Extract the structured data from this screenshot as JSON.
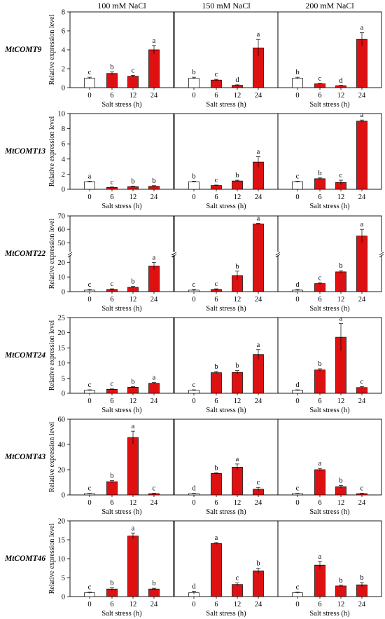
{
  "conditions": [
    "100 mM NaCl",
    "150 mM NaCl",
    "200 mM NaCl"
  ],
  "chart_data": {
    "type": "bar",
    "categories": [
      "0",
      "6",
      "12",
      "24"
    ],
    "xlabel": "Salt stress (h)",
    "ylabel": "Relative expression level",
    "bar_colors": {
      "control": "#ffffff",
      "treated": "#dd1111",
      "edge": "#000000"
    },
    "genes": [
      {
        "name": "MtCOMT9",
        "yticks": [
          0,
          2,
          4,
          6,
          8
        ],
        "ylim": [
          0,
          8
        ],
        "panels": [
          {
            "values": [
              1.0,
              1.5,
              1.2,
              4.0
            ],
            "errors": [
              0.1,
              0.15,
              0.1,
              0.45
            ],
            "sig": [
              "c",
              "b",
              "c",
              "a"
            ]
          },
          {
            "values": [
              1.0,
              0.8,
              0.25,
              4.2
            ],
            "errors": [
              0.1,
              0.08,
              0.05,
              0.9
            ],
            "sig": [
              "b",
              "c",
              "d",
              "a"
            ]
          },
          {
            "values": [
              1.0,
              0.4,
              0.2,
              5.1
            ],
            "errors": [
              0.1,
              0.05,
              0.04,
              0.7
            ],
            "sig": [
              "b",
              "c",
              "d",
              "a"
            ]
          }
        ]
      },
      {
        "name": "MtCOMT13",
        "yticks": [
          0,
          2,
          4,
          6,
          8,
          10
        ],
        "ylim": [
          0,
          10
        ],
        "panels": [
          {
            "values": [
              1.0,
              0.25,
              0.35,
              0.4
            ],
            "errors": [
              0.08,
              0.05,
              0.06,
              0.08
            ],
            "sig": [
              "a",
              "c",
              "b",
              "b"
            ]
          },
          {
            "values": [
              1.0,
              0.5,
              1.1,
              3.6
            ],
            "errors": [
              0.08,
              0.06,
              0.1,
              0.7
            ],
            "sig": [
              "b",
              "c",
              "b",
              "a"
            ]
          },
          {
            "values": [
              1.0,
              1.4,
              0.9,
              9.0
            ],
            "errors": [
              0.08,
              0.1,
              0.3,
              0.15
            ],
            "sig": [
              "c",
              "b",
              "c",
              "a"
            ]
          }
        ]
      },
      {
        "name": "MtCOMT22",
        "yticks": [
          0,
          10,
          20,
          50,
          60,
          70
        ],
        "ylim": [
          0,
          70
        ],
        "axis_break": true,
        "panels": [
          {
            "values": [
              1.0,
              1.5,
              3.0,
              17.5
            ],
            "errors": [
              0.5,
              0.4,
              0.5,
              2.5
            ],
            "sig": [
              "c",
              "c",
              "b",
              "a"
            ]
          },
          {
            "values": [
              1.0,
              1.5,
              11.0,
              64.0
            ],
            "errors": [
              0.5,
              0.4,
              3.0,
              0.5
            ],
            "sig": [
              "c",
              "c",
              "b",
              "a"
            ]
          },
          {
            "values": [
              1.0,
              5.5,
              13.5,
              55.0
            ],
            "errors": [
              0.5,
              0.6,
              0.8,
              5.0
            ],
            "sig": [
              "d",
              "c",
              "b",
              "a"
            ]
          }
        ]
      },
      {
        "name": "MtCOMT24",
        "yticks": [
          0,
          5,
          10,
          15,
          20,
          25
        ],
        "ylim": [
          0,
          25
        ],
        "panels": [
          {
            "values": [
              1.0,
              1.3,
              2.0,
              3.3
            ],
            "errors": [
              0.15,
              0.15,
              0.2,
              0.25
            ],
            "sig": [
              "c",
              "c",
              "b",
              "a"
            ]
          },
          {
            "values": [
              1.0,
              6.8,
              6.9,
              12.8
            ],
            "errors": [
              0.15,
              0.4,
              0.6,
              1.6
            ],
            "sig": [
              "c",
              "b",
              "b",
              "a"
            ]
          },
          {
            "values": [
              1.0,
              7.7,
              18.5,
              1.9
            ],
            "errors": [
              0.15,
              0.4,
              4.5,
              0.3
            ],
            "sig": [
              "d",
              "b",
              "a",
              "c"
            ]
          }
        ]
      },
      {
        "name": "MtCOMT43",
        "yticks": [
          0,
          20,
          40,
          60
        ],
        "ylim": [
          0,
          60
        ],
        "panels": [
          {
            "values": [
              1.0,
              10.5,
              45.5,
              1.0
            ],
            "errors": [
              0.3,
              0.8,
              5.0,
              0.3
            ],
            "sig": [
              "c",
              "b",
              "a",
              "c"
            ]
          },
          {
            "values": [
              1.0,
              17.0,
              22.0,
              4.5
            ],
            "errors": [
              0.3,
              0.6,
              2.5,
              1.5
            ],
            "sig": [
              "d",
              "b",
              "a",
              "c"
            ]
          },
          {
            "values": [
              1.0,
              20.0,
              6.5,
              1.0
            ],
            "errors": [
              0.3,
              1.0,
              1.0,
              0.3
            ],
            "sig": [
              "c",
              "a",
              "b",
              "c"
            ]
          }
        ]
      },
      {
        "name": "MtCOMT46",
        "yticks": [
          0,
          5,
          10,
          15,
          20
        ],
        "ylim": [
          0,
          20
        ],
        "panels": [
          {
            "values": [
              1.0,
              2.0,
              16.0,
              2.0
            ],
            "errors": [
              0.2,
              0.3,
              0.8,
              0.2
            ],
            "sig": [
              "c",
              "b",
              "a",
              "b"
            ]
          },
          {
            "values": [
              1.0,
              14.0,
              3.2,
              6.8
            ],
            "errors": [
              0.4,
              0.3,
              0.4,
              0.7
            ],
            "sig": [
              "d",
              "a",
              "c",
              "b"
            ]
          },
          {
            "values": [
              1.0,
              8.3,
              2.8,
              3.1
            ],
            "errors": [
              0.2,
              1.0,
              0.2,
              0.6
            ],
            "sig": [
              "c",
              "a",
              "b",
              "b"
            ]
          }
        ]
      }
    ]
  }
}
